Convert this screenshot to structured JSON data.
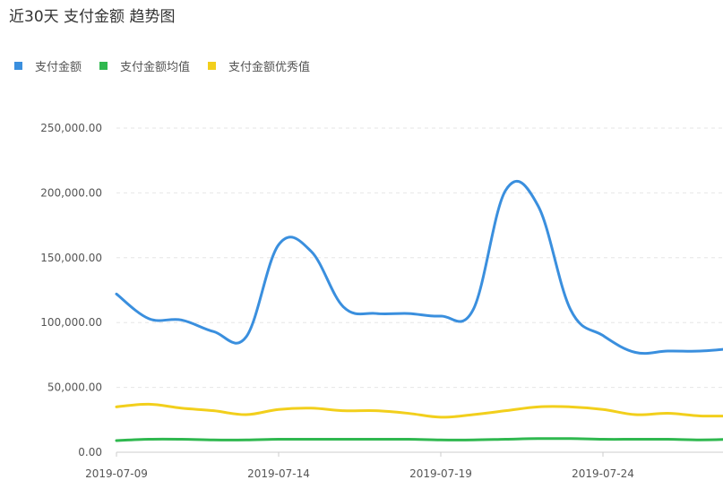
{
  "title": "近30天 支付金额 趋势图",
  "colors": {
    "pay": "#3a8fde",
    "avg": "#2fb84f",
    "excellent": "#f2cf1c"
  },
  "chart_data": {
    "type": "line",
    "title": "近30天 支付金额 趋势图",
    "legend_position": "top-left",
    "grid": true,
    "ylim": [
      0,
      250000
    ],
    "yticks": [
      0,
      50000,
      100000,
      150000,
      200000,
      250000
    ],
    "ytick_labels": [
      "0.00",
      "50,000.00",
      "100,000.00",
      "150,000.00",
      "200,000.00",
      "250,000.00"
    ],
    "xtick_labels": [
      "2019-07-09",
      "2019-07-14",
      "2019-07-19",
      "2019-07-24"
    ],
    "x": [
      "2019-07-09",
      "2019-07-10",
      "2019-07-11",
      "2019-07-12",
      "2019-07-13",
      "2019-07-14",
      "2019-07-15",
      "2019-07-16",
      "2019-07-17",
      "2019-07-18",
      "2019-07-19",
      "2019-07-20",
      "2019-07-21",
      "2019-07-22",
      "2019-07-23",
      "2019-07-24",
      "2019-07-25",
      "2019-07-26",
      "2019-07-27",
      "2019-07-28"
    ],
    "series": [
      {
        "name": "支付金额",
        "color": "#3a8fde",
        "values": [
          122000,
          103000,
          102000,
          93000,
          89000,
          160000,
          155000,
          112000,
          107000,
          107000,
          105000,
          110000,
          202000,
          190000,
          110000,
          90000,
          77000,
          78000,
          78000,
          80000
        ]
      },
      {
        "name": "支付金额均值",
        "color": "#2fb84f",
        "values": [
          9000,
          10000,
          10000,
          9500,
          9500,
          10000,
          10000,
          10000,
          10000,
          10000,
          9500,
          9500,
          10000,
          10500,
          10500,
          10000,
          10000,
          10000,
          9500,
          10000
        ]
      },
      {
        "name": "支付金额优秀值",
        "color": "#f2cf1c",
        "values": [
          35000,
          37000,
          34000,
          32000,
          29000,
          33000,
          34000,
          32000,
          32000,
          30000,
          27000,
          29000,
          32000,
          35000,
          35000,
          33000,
          29000,
          30000,
          28000,
          28000
        ]
      }
    ]
  }
}
